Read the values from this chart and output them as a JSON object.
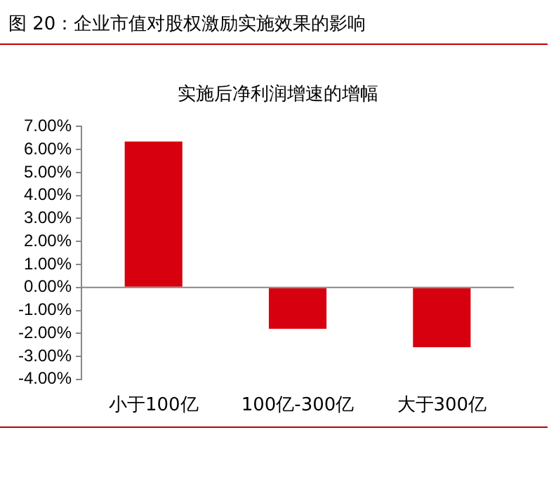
{
  "chart_data": {
    "type": "bar",
    "title": "图 20：企业市值对股权激励实施效果的影响",
    "subtitle": "实施后净利润增速的增幅",
    "categories": [
      "小于100亿",
      "100亿-300亿",
      "大于300亿"
    ],
    "values": [
      6.35,
      -1.8,
      -2.6
    ],
    "color": "#d7000f",
    "ylim": [
      -4,
      7
    ],
    "yticks": [
      {
        "value": -4,
        "label": "-4.00%"
      },
      {
        "value": -3,
        "label": "-3.00%"
      },
      {
        "value": -2,
        "label": "-2.00%"
      },
      {
        "value": -1,
        "label": "-1.00%"
      },
      {
        "value": 0,
        "label": "0.00%"
      },
      {
        "value": 1,
        "label": "1.00%"
      },
      {
        "value": 2,
        "label": "2.00%"
      },
      {
        "value": 3,
        "label": "3.00%"
      },
      {
        "value": 4,
        "label": "4.00%"
      },
      {
        "value": 5,
        "label": "5.00%"
      },
      {
        "value": 6,
        "label": "6.00%"
      },
      {
        "value": 7,
        "label": "7.00%"
      }
    ],
    "ref_lines": [
      {
        "axis": "y",
        "value": 0,
        "color": "#888888"
      }
    ],
    "grid": false,
    "legend": false
  }
}
